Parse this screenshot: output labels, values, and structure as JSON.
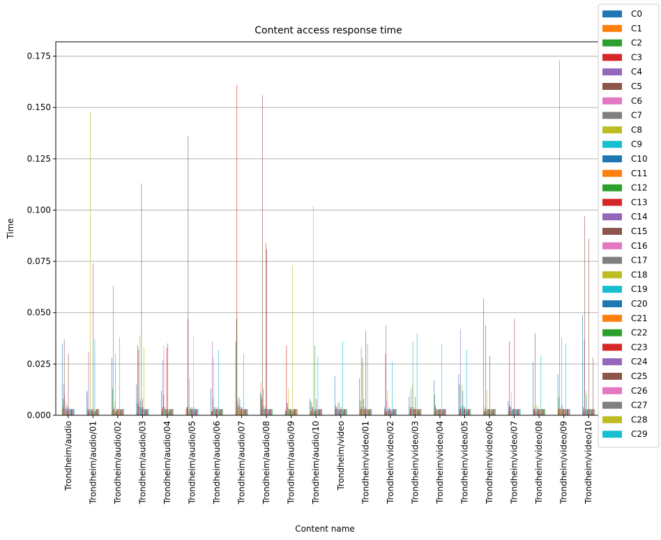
{
  "chart_data": {
    "type": "bar",
    "title": "Content access response time",
    "xlabel": "Content name",
    "ylabel": "Time",
    "ylim": [
      0,
      0.182
    ],
    "yticks": [
      "0.000",
      "0.025",
      "0.050",
      "0.075",
      "0.100",
      "0.125",
      "0.150",
      "0.175"
    ],
    "grid": "y",
    "legend_position": "right",
    "colors": [
      "#1f77b4",
      "#ff7f0e",
      "#2ca02c",
      "#d62728",
      "#9467bd",
      "#8c564b",
      "#e377c2",
      "#7f7f7f",
      "#bcbd22",
      "#17becf"
    ],
    "categories": [
      "Trondheim/audio",
      "Trondheim/audio/01",
      "Trondheim/audio/02",
      "Trondheim/audio/03",
      "Trondheim/audio/04",
      "Trondheim/audio/05",
      "Trondheim/audio/06",
      "Trondheim/audio/07",
      "Trondheim/audio/08",
      "Trondheim/audio/09",
      "Trondheim/audio/10",
      "Trondheim/video",
      "Trondheim/video/01",
      "Trondheim/video/02",
      "Trondheim/video/03",
      "Trondheim/video/04",
      "Trondheim/video/05",
      "Trondheim/video/06",
      "Trondheim/video/07",
      "Trondheim/video/08",
      "Trondheim/video/09",
      "Trondheim/video/10"
    ],
    "series": [
      {
        "name": "C0",
        "values": [
          0.035,
          0.012,
          0.028,
          0.015,
          0.012,
          0.003,
          0.013,
          0.036,
          0.011,
          0.002,
          0.008,
          0.019,
          0.018,
          0.004,
          0.009,
          0.017,
          0.02,
          0.057,
          0.007,
          0.026,
          0.02,
          0.049
        ]
      },
      {
        "name": "C1",
        "values": [
          0.003,
          0.011,
          0.002,
          0.002,
          0.003,
          0.003,
          0.002,
          0.002,
          0.016,
          0.003,
          0.002,
          0.003,
          0.003,
          0.002,
          0.002,
          0.002,
          0.002,
          0.003,
          0.002,
          0.003,
          0.003,
          0.003
        ]
      },
      {
        "name": "C2",
        "values": [
          0.008,
          0.003,
          0.013,
          0.006,
          0.002,
          0.004,
          0.002,
          0.047,
          0.01,
          0.002,
          0.007,
          0.005,
          0.007,
          0.003,
          0.004,
          0.01,
          0.015,
          0.002,
          0.004,
          0.003,
          0.009,
          0.004
        ]
      },
      {
        "name": "C3",
        "values": [
          0.004,
          0.002,
          0.003,
          0.034,
          0.004,
          0.004,
          0.002,
          0.161,
          0.008,
          0.034,
          0.002,
          0.003,
          0.003,
          0.03,
          0.003,
          0.004,
          0.003,
          0.002,
          0.036,
          0.003,
          0.003,
          0.002
        ]
      },
      {
        "name": "C4",
        "values": [
          0.015,
          0.031,
          0.063,
          0.005,
          0.027,
          0.047,
          0.036,
          0.007,
          0.003,
          0.006,
          0.006,
          0.004,
          0.033,
          0.044,
          0.013,
          0.005,
          0.042,
          0.004,
          0.005,
          0.004,
          0.173,
          0.037
        ]
      },
      {
        "name": "C5",
        "values": [
          0.037,
          0.003,
          0.003,
          0.032,
          0.01,
          0.136,
          0.008,
          0.004,
          0.156,
          0.006,
          0.004,
          0.003,
          0.004,
          0.002,
          0.004,
          0.003,
          0.004,
          0.044,
          0.004,
          0.04,
          0.004,
          0.097
        ]
      },
      {
        "name": "C6",
        "values": [
          0.01,
          0.003,
          0.004,
          0.008,
          0.034,
          0.003,
          0.028,
          0.005,
          0.004,
          0.004,
          0.003,
          0.004,
          0.003,
          0.007,
          0.003,
          0.002,
          0.003,
          0.003,
          0.004,
          0.003,
          0.003,
          0.003
        ]
      },
      {
        "name": "C7",
        "values": [
          0.003,
          0.002,
          0.002,
          0.004,
          0.003,
          0.002,
          0.003,
          0.009,
          0.013,
          0.003,
          0.004,
          0.003,
          0.028,
          0.003,
          0.003,
          0.003,
          0.003,
          0.003,
          0.002,
          0.002,
          0.003,
          0.003
        ]
      },
      {
        "name": "C8",
        "values": [
          0.007,
          0.148,
          0.007,
          0.039,
          0.004,
          0.018,
          0.004,
          0.004,
          0.005,
          0.013,
          0.102,
          0.007,
          0.026,
          0.012,
          0.015,
          0.003,
          0.015,
          0.012,
          0.011,
          0.005,
          0.003,
          0.012
        ]
      },
      {
        "name": "C9",
        "values": [
          0.003,
          0.003,
          0.03,
          0.004,
          0.004,
          0.004,
          0.003,
          0.005,
          0.003,
          0.003,
          0.003,
          0.003,
          0.003,
          0.003,
          0.036,
          0.003,
          0.005,
          0.002,
          0.003,
          0.003,
          0.038,
          0.01
        ]
      },
      {
        "name": "C10",
        "values": [
          0.004,
          0.003,
          0.002,
          0.007,
          0.003,
          0.003,
          0.004,
          0.008,
          0.003,
          0.003,
          0.002,
          0.006,
          0.008,
          0.003,
          0.004,
          0.003,
          0.012,
          0.003,
          0.003,
          0.003,
          0.005,
          0.003
        ]
      },
      {
        "name": "C11",
        "values": [
          0.002,
          0.002,
          0.002,
          0.003,
          0.002,
          0.003,
          0.002,
          0.002,
          0.003,
          0.002,
          0.002,
          0.002,
          0.003,
          0.002,
          0.003,
          0.002,
          0.002,
          0.003,
          0.002,
          0.002,
          0.003,
          0.002
        ]
      },
      {
        "name": "C12",
        "values": [
          0.005,
          0.003,
          0.003,
          0.113,
          0.003,
          0.004,
          0.003,
          0.003,
          0.004,
          0.003,
          0.034,
          0.003,
          0.003,
          0.004,
          0.003,
          0.003,
          0.004,
          0.003,
          0.003,
          0.004,
          0.003,
          0.003
        ]
      },
      {
        "name": "C13",
        "values": [
          0.003,
          0.003,
          0.003,
          0.004,
          0.033,
          0.003,
          0.003,
          0.004,
          0.084,
          0.003,
          0.003,
          0.003,
          0.004,
          0.003,
          0.003,
          0.003,
          0.003,
          0.003,
          0.003,
          0.003,
          0.003,
          0.003
        ]
      },
      {
        "name": "C14",
        "values": [
          0.003,
          0.002,
          0.003,
          0.003,
          0.003,
          0.003,
          0.003,
          0.003,
          0.003,
          0.003,
          0.003,
          0.003,
          0.003,
          0.003,
          0.003,
          0.003,
          0.003,
          0.003,
          0.003,
          0.003,
          0.003,
          0.003
        ]
      },
      {
        "name": "C15",
        "values": [
          0.03,
          0.074,
          0.003,
          0.008,
          0.035,
          0.003,
          0.004,
          0.004,
          0.081,
          0.002,
          0.008,
          0.004,
          0.041,
          0.002,
          0.009,
          0.003,
          0.004,
          0.029,
          0.047,
          0.003,
          0.003,
          0.086
        ]
      },
      {
        "name": "C16",
        "values": [
          0.003,
          0.003,
          0.003,
          0.003,
          0.003,
          0.003,
          0.003,
          0.003,
          0.003,
          0.003,
          0.003,
          0.003,
          0.003,
          0.003,
          0.003,
          0.003,
          0.003,
          0.003,
          0.003,
          0.003,
          0.003,
          0.003
        ]
      },
      {
        "name": "C17",
        "values": [
          0.003,
          0.002,
          0.003,
          0.004,
          0.002,
          0.004,
          0.003,
          0.003,
          0.003,
          0.002,
          0.002,
          0.003,
          0.003,
          0.002,
          0.003,
          0.003,
          0.003,
          0.002,
          0.003,
          0.003,
          0.003,
          0.003
        ]
      },
      {
        "name": "C18",
        "values": [
          0.004,
          0.003,
          0.003,
          0.033,
          0.003,
          0.039,
          0.003,
          0.003,
          0.003,
          0.073,
          0.003,
          0.003,
          0.003,
          0.003,
          0.003,
          0.003,
          0.002,
          0.003,
          0.003,
          0.003,
          0.003,
          0.003
        ]
      },
      {
        "name": "C19",
        "values": [
          0.003,
          0.037,
          0.038,
          0.003,
          0.003,
          0.004,
          0.032,
          0.03,
          0.003,
          0.003,
          0.029,
          0.036,
          0.035,
          0.026,
          0.04,
          0.035,
          0.032,
          0.003,
          0.003,
          0.029,
          0.035,
          0.003
        ]
      },
      {
        "name": "C20",
        "values": [
          0.003,
          0.002,
          0.003,
          0.003,
          0.003,
          0.003,
          0.003,
          0.003,
          0.003,
          0.003,
          0.003,
          0.003,
          0.003,
          0.003,
          0.003,
          0.003,
          0.003,
          0.003,
          0.003,
          0.003,
          0.003,
          0.003
        ]
      },
      {
        "name": "C21",
        "values": [
          0.002,
          0.002,
          0.002,
          0.002,
          0.002,
          0.002,
          0.002,
          0.002,
          0.002,
          0.002,
          0.002,
          0.002,
          0.002,
          0.002,
          0.002,
          0.002,
          0.002,
          0.002,
          0.002,
          0.002,
          0.002,
          0.002
        ]
      },
      {
        "name": "C22",
        "values": [
          0.003,
          0.003,
          0.003,
          0.003,
          0.003,
          0.003,
          0.003,
          0.003,
          0.003,
          0.003,
          0.003,
          0.003,
          0.003,
          0.003,
          0.003,
          0.003,
          0.003,
          0.003,
          0.003,
          0.003,
          0.003,
          0.003
        ]
      },
      {
        "name": "C23",
        "values": [
          0.003,
          0.003,
          0.003,
          0.003,
          0.003,
          0.003,
          0.003,
          0.003,
          0.003,
          0.003,
          0.003,
          0.003,
          0.003,
          0.003,
          0.003,
          0.003,
          0.003,
          0.003,
          0.003,
          0.003,
          0.003,
          0.003
        ]
      },
      {
        "name": "C24",
        "values": [
          0.003,
          0.003,
          0.003,
          0.003,
          0.003,
          0.003,
          0.003,
          0.003,
          0.003,
          0.003,
          0.003,
          0.003,
          0.003,
          0.003,
          0.003,
          0.003,
          0.003,
          0.003,
          0.003,
          0.003,
          0.003,
          0.003
        ]
      },
      {
        "name": "C25",
        "values": [
          0.003,
          0.003,
          0.003,
          0.003,
          0.003,
          0.003,
          0.003,
          0.003,
          0.003,
          0.003,
          0.003,
          0.003,
          0.003,
          0.003,
          0.003,
          0.003,
          0.003,
          0.003,
          0.003,
          0.003,
          0.003,
          0.028
        ]
      },
      {
        "name": "C26",
        "values": [
          0.003,
          0.003,
          0.003,
          0.003,
          0.003,
          0.003,
          0.003,
          0.003,
          0.003,
          0.003,
          0.003,
          0.003,
          0.003,
          0.003,
          0.003,
          0.003,
          0.003,
          0.003,
          0.003,
          0.003,
          0.003,
          0.003
        ]
      },
      {
        "name": "C27",
        "values": [
          0.003,
          0.003,
          0.003,
          0.003,
          0.003,
          0.003,
          0.003,
          0.003,
          0.003,
          0.003,
          0.003,
          0.003,
          0.003,
          0.003,
          0.003,
          0.003,
          0.003,
          0.003,
          0.003,
          0.003,
          0.003,
          0.003
        ]
      },
      {
        "name": "C28",
        "values": [
          0.003,
          0.003,
          0.003,
          0.003,
          0.003,
          0.003,
          0.003,
          0.003,
          0.003,
          0.003,
          0.003,
          0.003,
          0.003,
          0.003,
          0.003,
          0.003,
          0.003,
          0.003,
          0.003,
          0.003,
          0.003,
          0.003
        ]
      },
      {
        "name": "C29",
        "values": [
          0.003,
          0.003,
          0.003,
          0.003,
          0.003,
          0.003,
          0.003,
          0.003,
          0.003,
          0.003,
          0.003,
          0.003,
          0.003,
          0.003,
          0.003,
          0.003,
          0.003,
          0.003,
          0.003,
          0.003,
          0.003,
          0.003
        ]
      }
    ]
  }
}
